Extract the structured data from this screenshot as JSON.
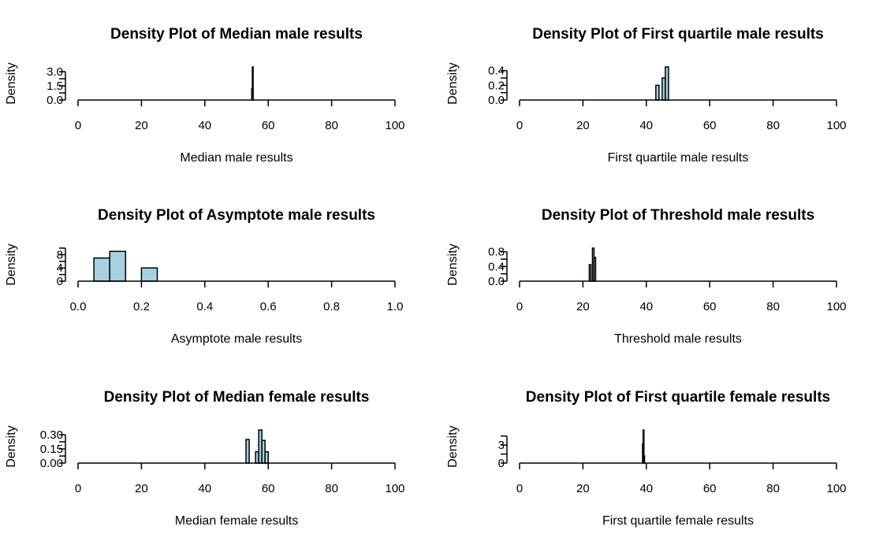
{
  "colors": {
    "bar_fill": "#a6d1e1",
    "bar_stroke": "#000000",
    "background": "#ffffff"
  },
  "chart_data": [
    {
      "type": "bar",
      "title": "Density Plot of Median male results",
      "xlabel": "Median male results",
      "ylabel": "Density",
      "xlim": [
        0,
        100
      ],
      "ylim": [
        0,
        3.5
      ],
      "x_ticks": [
        "0",
        "20",
        "40",
        "60",
        "80",
        "100"
      ],
      "y_ticks": [
        "0.0",
        "1.5",
        "3.0"
      ],
      "bins": [
        {
          "x0": 54.8,
          "x1": 55.0,
          "density": 1.2
        },
        {
          "x0": 55.0,
          "x1": 55.2,
          "density": 3.5
        }
      ]
    },
    {
      "type": "bar",
      "title": "Density Plot of First quartile male results",
      "xlabel": "First quartile male results",
      "ylabel": "Density",
      "xlim": [
        0,
        100
      ],
      "ylim": [
        0,
        0.45
      ],
      "x_ticks": [
        "0",
        "20",
        "40",
        "60",
        "80",
        "100"
      ],
      "y_ticks": [
        "0.0",
        "0.2",
        "0.4"
      ],
      "bins": [
        {
          "x0": 43,
          "x1": 44,
          "density": 0.2
        },
        {
          "x0": 44,
          "x1": 45,
          "density": 0.0
        },
        {
          "x0": 45,
          "x1": 46,
          "density": 0.3
        },
        {
          "x0": 46,
          "x1": 47,
          "density": 0.45
        }
      ]
    },
    {
      "type": "bar",
      "title": "Density Plot of Asymptote male results",
      "xlabel": "Asymptote male results",
      "ylabel": "Density",
      "xlim": [
        0,
        1
      ],
      "ylim": [
        0,
        10
      ],
      "x_ticks": [
        "0.0",
        "0.2",
        "0.4",
        "0.6",
        "0.8",
        "1.0"
      ],
      "y_ticks": [
        "0",
        "4",
        "8"
      ],
      "bins": [
        {
          "x0": 0.05,
          "x1": 0.1,
          "density": 7
        },
        {
          "x0": 0.1,
          "x1": 0.15,
          "density": 9
        },
        {
          "x0": 0.15,
          "x1": 0.2,
          "density": 0
        },
        {
          "x0": 0.2,
          "x1": 0.25,
          "density": 4
        }
      ]
    },
    {
      "type": "bar",
      "title": "Density Plot of Threshold male results",
      "xlabel": "Threshold male results",
      "ylabel": "Density",
      "xlim": [
        0,
        100
      ],
      "ylim": [
        0,
        0.9
      ],
      "x_ticks": [
        "0",
        "20",
        "40",
        "60",
        "80",
        "100"
      ],
      "y_ticks": [
        "0.0",
        "0.4",
        "0.8"
      ],
      "bins": [
        {
          "x0": 22.0,
          "x1": 22.5,
          "density": 0.45
        },
        {
          "x0": 22.5,
          "x1": 23.0,
          "density": 0.0
        },
        {
          "x0": 23.0,
          "x1": 23.5,
          "density": 0.9
        },
        {
          "x0": 23.5,
          "x1": 24.0,
          "density": 0.65
        }
      ]
    },
    {
      "type": "bar",
      "title": "Density Plot of Median female results",
      "xlabel": "Median female results",
      "ylabel": "Density",
      "xlim": [
        0,
        100
      ],
      "ylim": [
        0,
        0.35
      ],
      "x_ticks": [
        "0",
        "20",
        "40",
        "60",
        "80",
        "100"
      ],
      "y_ticks": [
        "0.00",
        "0.15",
        "0.30"
      ],
      "bins": [
        {
          "x0": 53,
          "x1": 54,
          "density": 0.25
        },
        {
          "x0": 54,
          "x1": 55,
          "density": 0.0
        },
        {
          "x0": 55,
          "x1": 56,
          "density": 0.0
        },
        {
          "x0": 56,
          "x1": 57,
          "density": 0.12
        },
        {
          "x0": 57,
          "x1": 58,
          "density": 0.35
        },
        {
          "x0": 58,
          "x1": 59,
          "density": 0.24
        },
        {
          "x0": 59,
          "x1": 60,
          "density": 0.12
        }
      ]
    },
    {
      "type": "bar",
      "title": "Density Plot of First quartile female results",
      "xlabel": "First quartile female results",
      "ylabel": "Density",
      "xlim": [
        0,
        100
      ],
      "ylim": [
        0,
        5.5
      ],
      "x_ticks": [
        "0",
        "20",
        "40",
        "60",
        "80",
        "100"
      ],
      "y_ticks": [
        "0",
        "3"
      ],
      "bins": [
        {
          "x0": 38.8,
          "x1": 39.0,
          "density": 3.2
        },
        {
          "x0": 39.0,
          "x1": 39.2,
          "density": 5.5
        },
        {
          "x0": 39.2,
          "x1": 39.4,
          "density": 1.2
        }
      ]
    }
  ]
}
